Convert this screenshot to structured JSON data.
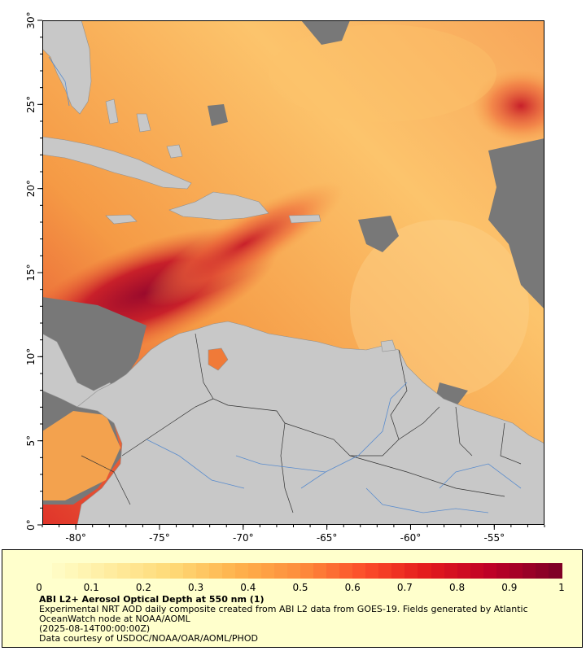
{
  "map": {
    "lon_range": [
      -82,
      -52
    ],
    "lat_range": [
      0,
      30
    ],
    "x_ticks": [
      {
        "value": -80,
        "label": "-80°"
      },
      {
        "value": -75,
        "label": "-75°"
      },
      {
        "value": -70,
        "label": "-70°"
      },
      {
        "value": -65,
        "label": "-65°"
      },
      {
        "value": -60,
        "label": "-60°"
      },
      {
        "value": -55,
        "label": "-55°"
      }
    ],
    "y_ticks": [
      {
        "value": 30,
        "label": "30°"
      },
      {
        "value": 25,
        "label": "25°"
      },
      {
        "value": 20,
        "label": "20°"
      },
      {
        "value": 15,
        "label": "15°"
      },
      {
        "value": 10,
        "label": "10°"
      },
      {
        "value": 5,
        "label": "5°"
      },
      {
        "value": 0,
        "label": "0°"
      }
    ],
    "colors": {
      "land": "#c8c8c8",
      "no_data": "#787878",
      "rivers": "#5a8ccd",
      "borders": "#333333",
      "aod_low": "#ffe6a0",
      "aod_mid": "#f7913c",
      "aod_high": "#800026"
    }
  },
  "colorbar": {
    "range": [
      0,
      1
    ],
    "tick_labels": [
      "0",
      "0.1",
      "0.2",
      "0.3",
      "0.4",
      "0.5",
      "0.6",
      "0.7",
      "0.8",
      "0.9",
      "1"
    ],
    "stops": [
      "#ffffcc",
      "#ffeda0",
      "#fed976",
      "#feb24c",
      "#fd8d3c",
      "#fc4e2a",
      "#e31a1c",
      "#bd0026",
      "#800026"
    ]
  },
  "legend": {
    "title": "ABI L2+ Aerosol Optical Depth at 550 nm (1)",
    "line1": "Experimental NRT AOD daily composite created from ABI L2 data from GOES-19. Fields generated by Atlantic",
    "line2": "OceanWatch node at NOAA/AOML",
    "line3": "(2025-08-14T00:00:00Z)",
    "line4": "Data courtesy of USDOC/NOAA/OAR/AOML/PHOD"
  }
}
